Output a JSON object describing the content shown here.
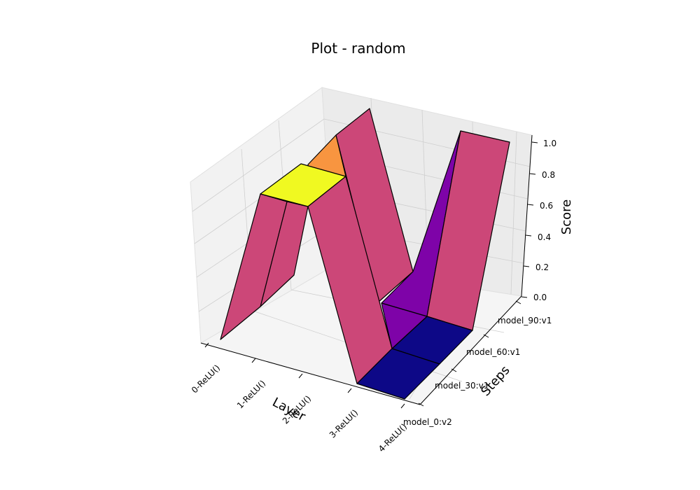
{
  "chart_data": {
    "type": "surface3d",
    "title": "Plot - random",
    "xlabel": "Layer",
    "ylabel": "Steps",
    "zlabel": "Score",
    "layers": [
      "0-ReLU()",
      "1-ReLU()",
      "2-ReLU()",
      "3-ReLU()",
      "4-ReLU()"
    ],
    "steps": [
      "model_0:v2",
      "model_30:v1",
      "model_60:v1",
      "model_90:v1"
    ],
    "z_ticks": [
      "0.0",
      "0.2",
      "0.4",
      "0.6",
      "0.8",
      "1.0"
    ],
    "zlim": [
      0,
      1
    ],
    "colormap": "plasma",
    "cells": [
      {
        "layer": 0,
        "step": 1,
        "value": 0.31
      },
      {
        "layer": 0,
        "step": 2,
        "value": 0.31
      },
      {
        "layer": 0,
        "step": 3,
        "value": 0.31
      },
      {
        "layer": 1,
        "step": 1,
        "value": 1.0
      },
      {
        "layer": 1,
        "step": 2,
        "value": 0.89
      },
      {
        "layer": 1,
        "step": 3,
        "value": 0.31
      },
      {
        "layer": 2,
        "step": 1,
        "value": 0.31
      },
      {
        "layer": 2,
        "step": 2,
        "value": 0.31
      },
      {
        "layer": 2,
        "step": 3,
        "value": 0.31
      },
      {
        "layer": 3,
        "step": 1,
        "value": 0.0
      },
      {
        "layer": 3,
        "step": 2,
        "value": 0.0
      },
      {
        "layer": 3,
        "step": 3,
        "value": 0.14
      }
    ],
    "faces": [
      {
        "name": "surface-face-front-slope",
        "color": "#cc4778"
      },
      {
        "name": "surface-face-left-ridge",
        "color": "#cc4778"
      },
      {
        "name": "surface-face-inner-slope",
        "color": "#cc4778"
      },
      {
        "name": "surface-face-back-orange",
        "color": "#f89540"
      },
      {
        "name": "surface-face-back-slope",
        "color": "#cc4778"
      },
      {
        "name": "surface-face-top-yellow",
        "color": "#f0f921"
      },
      {
        "name": "surface-face-dark-blue-front",
        "color": "#0d0887"
      },
      {
        "name": "surface-face-dark-blue-back",
        "color": "#0d0887"
      },
      {
        "name": "surface-face-purple-mid",
        "color": "#7e03a8"
      },
      {
        "name": "surface-face-purple-back",
        "color": "#7e03a8"
      },
      {
        "name": "surface-face-right-ridge-front",
        "color": "#cc4778"
      },
      {
        "name": "surface-face-right-ridge-top",
        "color": "#cc4778"
      }
    ]
  }
}
